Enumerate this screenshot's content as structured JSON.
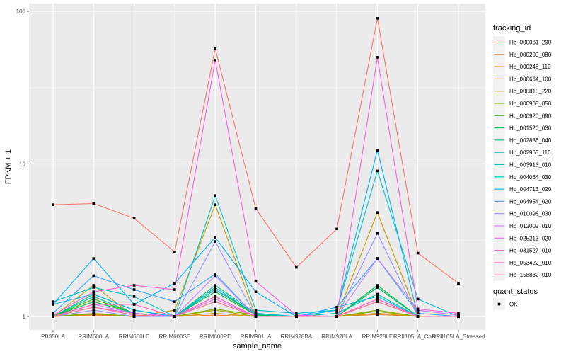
{
  "chart_data": {
    "type": "line",
    "title": "",
    "xlabel": "sample_name",
    "ylabel": "FPKM + 1",
    "yscale": "log10",
    "ylim": [
      0.92,
      115
    ],
    "yticks": [
      1,
      10,
      100
    ],
    "ytick_labels": [
      "1",
      "10",
      "100"
    ],
    "grid": true,
    "legend_position": "right",
    "categories": [
      "PB350LA",
      "RRIM600LA",
      "RRIM600LE",
      "RRIM600SE",
      "RRIM600PE",
      "RRIM901LA",
      "RRIM928BA",
      "RRIM928LA",
      "RRIM928LE",
      "RRII105LA_Control",
      "RRII105LA_Stressed"
    ],
    "color_legend_title": "tracking_id",
    "shape_legend_title": "quant_status",
    "shape_legend_items": [
      "OK"
    ],
    "series": [
      {
        "name": "Hb_000061_290",
        "color": "#F8766D",
        "values": [
          5.4,
          5.5,
          4.4,
          2.65,
          57,
          5.1,
          2.1,
          3.75,
          90,
          2.6,
          1.65
        ]
      },
      {
        "name": "Hb_000200_080",
        "color": "#EA8331",
        "values": [
          1.0,
          1.02,
          1.0,
          1.0,
          1.02,
          1.0,
          1.0,
          1.0,
          1.03,
          1.0,
          1.0
        ]
      },
      {
        "name": "Hb_000248_110",
        "color": "#D89000",
        "values": [
          1.0,
          1.03,
          1.0,
          1.0,
          1.05,
          1.0,
          1.0,
          1.0,
          1.05,
          1.0,
          1.0
        ]
      },
      {
        "name": "Hb_000664_100",
        "color": "#C09B00",
        "values": [
          1.0,
          1.6,
          1.0,
          1.1,
          5.4,
          1.0,
          1.0,
          1.0,
          4.8,
          1.0,
          1.0
        ]
      },
      {
        "name": "Hb_000815_220",
        "color": "#A3A500",
        "values": [
          1.0,
          1.05,
          1.0,
          1.0,
          1.1,
          1.0,
          1.0,
          1.0,
          1.08,
          1.0,
          1.0
        ]
      },
      {
        "name": "Hb_000905_050",
        "color": "#7CAE00",
        "values": [
          1.0,
          1.04,
          1.0,
          1.0,
          1.12,
          1.02,
          1.0,
          1.0,
          1.1,
          1.0,
          1.0
        ]
      },
      {
        "name": "Hb_000920_090",
        "color": "#39B600",
        "values": [
          1.0,
          1.3,
          1.05,
          1.0,
          1.5,
          1.03,
          1.0,
          1.0,
          1.55,
          1.0,
          1.0
        ]
      },
      {
        "name": "Hb_001520_030",
        "color": "#00BB4E",
        "values": [
          1.0,
          1.25,
          1.05,
          1.0,
          1.45,
          1.02,
          1.0,
          1.0,
          1.6,
          1.0,
          1.0
        ]
      },
      {
        "name": "Hb_002836_040",
        "color": "#00BF7D",
        "values": [
          1.0,
          1.4,
          1.1,
          1.0,
          1.6,
          1.05,
          1.0,
          1.0,
          1.55,
          1.0,
          1.0
        ]
      },
      {
        "name": "Hb_002965_110",
        "color": "#00C1A3",
        "values": [
          1.0,
          1.35,
          1.05,
          1.0,
          1.55,
          1.03,
          1.0,
          1.05,
          1.4,
          1.0,
          1.0
        ]
      },
      {
        "name": "Hb_003913_010",
        "color": "#00BFC4",
        "values": [
          1.25,
          1.55,
          1.35,
          1.0,
          6.2,
          1.1,
          1.05,
          1.1,
          9.0,
          1.3,
          1.0
        ]
      },
      {
        "name": "Hb_004064_030",
        "color": "#00BAE0",
        "values": [
          1.2,
          1.4,
          1.1,
          1.0,
          1.5,
          1.05,
          1.0,
          1.15,
          1.35,
          1.0,
          1.0
        ]
      },
      {
        "name": "Hb_004713_020",
        "color": "#00B0F6",
        "values": [
          1.2,
          2.4,
          1.2,
          1.65,
          3.3,
          1.45,
          1.0,
          1.1,
          12.3,
          1.0,
          1.0
        ]
      },
      {
        "name": "Hb_004954_020",
        "color": "#35A2FF",
        "values": [
          1.05,
          1.85,
          1.5,
          1.25,
          1.9,
          1.0,
          1.0,
          1.15,
          2.4,
          1.05,
          1.0
        ]
      },
      {
        "name": "Hb_010098_030",
        "color": "#9590FF",
        "values": [
          1.0,
          1.1,
          1.0,
          1.0,
          3.1,
          1.0,
          1.0,
          1.0,
          3.5,
          1.0,
          1.0
        ]
      },
      {
        "name": "Hb_012002_010",
        "color": "#C77CFF",
        "values": [
          1.0,
          1.2,
          1.05,
          1.0,
          1.85,
          1.0,
          1.0,
          1.0,
          2.4,
          1.1,
          1.02
        ]
      },
      {
        "name": "Hb_025213_020",
        "color": "#E76BF3",
        "values": [
          1.0,
          1.15,
          1.05,
          1.0,
          1.3,
          1.0,
          1.0,
          1.0,
          1.3,
          1.0,
          1.0
        ]
      },
      {
        "name": "Hb_031527_010",
        "color": "#FA62DB",
        "values": [
          1.02,
          1.45,
          1.6,
          1.5,
          48,
          1.7,
          1.02,
          1.0,
          50,
          1.12,
          1.05
        ]
      },
      {
        "name": "Hb_053422_010",
        "color": "#FF62BC",
        "values": [
          1.0,
          1.2,
          1.2,
          1.0,
          1.35,
          1.0,
          1.0,
          1.0,
          1.3,
          1.0,
          1.0
        ]
      },
      {
        "name": "Hb_158832_010",
        "color": "#FF6C91",
        "values": [
          1.0,
          1.15,
          1.02,
          1.0,
          1.25,
          1.0,
          1.0,
          1.0,
          1.25,
          1.0,
          1.0
        ]
      }
    ]
  },
  "colors": {
    "panel_background": "#EBEBEB",
    "grid_major": "#FFFFFF",
    "point": "#000000"
  }
}
